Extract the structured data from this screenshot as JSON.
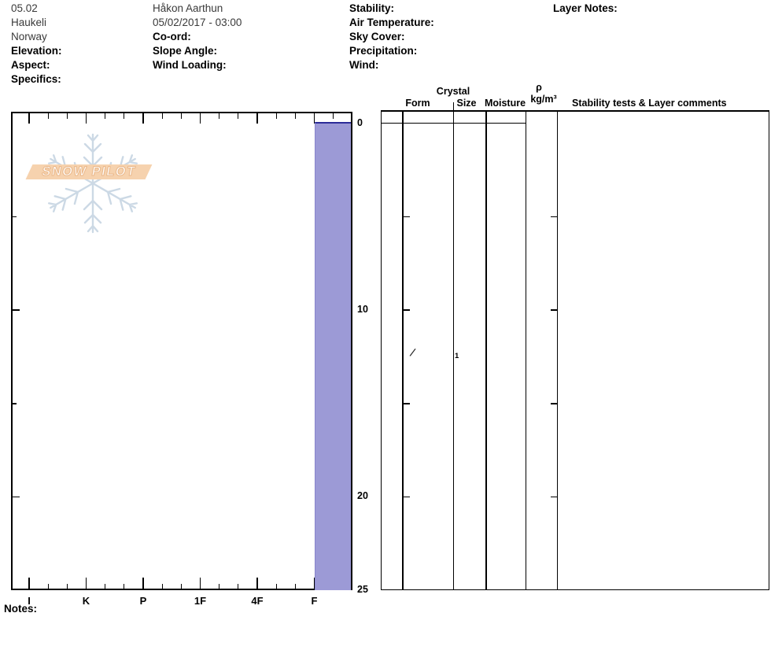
{
  "header": {
    "col1": [
      "05.02",
      "Haukeli",
      "Norway",
      "Elevation:",
      "Aspect:",
      "Specifics:"
    ],
    "col2": [
      "Håkon Aarthun",
      "05/02/2017 - 03:00",
      "Co-ord:",
      "Slope Angle:",
      "Wind Loading:"
    ],
    "col3": [
      "Stability:",
      "Air Temperature:",
      "Sky Cover:",
      "Precipitation:",
      "Wind:"
    ],
    "col4": [
      "Layer Notes:"
    ]
  },
  "watermark": {
    "text": "SNOW PILOT"
  },
  "table_headers": {
    "crystal": "Crystal",
    "form": "Form",
    "size": "Size",
    "moisture": "Moisture",
    "rho": "ρ",
    "rho_units": "kg/m³",
    "comments": "Stability tests & Layer comments"
  },
  "notes_label": "Notes:",
  "colors": {
    "layer_fill": "#9c9ad6",
    "layer_outline": "#2c2c99",
    "layer_left_edge": "#8886cc",
    "watermark_banner": "#f6d2ae",
    "watermark_snowflake": "#ccd9e5"
  },
  "chart_data": {
    "type": "snow-profile",
    "title": "",
    "hardness_axis": {
      "categories": [
        "I",
        "K",
        "P",
        "1F",
        "4F",
        "F"
      ],
      "orientation": "bottom",
      "minor_divisions_per_interval": 3
    },
    "depth_axis": {
      "unit": "cm",
      "range": [
        0,
        25
      ],
      "tick_labels": [
        0,
        10,
        20,
        25
      ],
      "major_ticks": [
        10,
        20
      ],
      "minor_ticks": [
        5,
        15
      ],
      "orientation": "right"
    },
    "layers": [
      {
        "top_cm": 0,
        "bottom_cm": 25,
        "hardness": "F",
        "grain_form_symbol": "/",
        "grain_size": "1",
        "moisture": "",
        "density": "",
        "comments": ""
      }
    ]
  }
}
